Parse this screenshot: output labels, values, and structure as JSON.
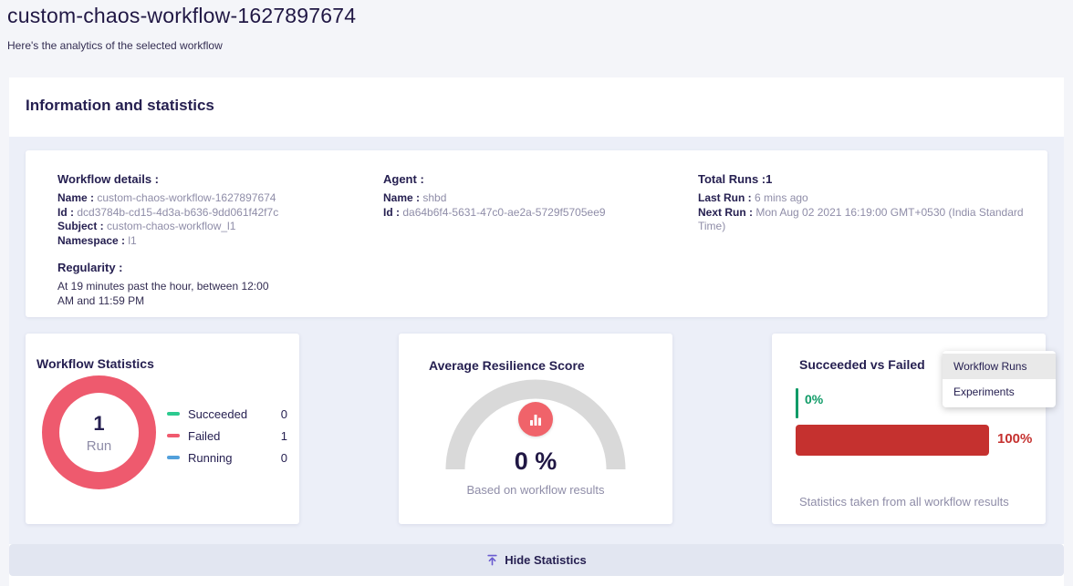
{
  "page": {
    "title": "custom-chaos-workflow-1627897674",
    "subtitle": "Here's the analytics of the selected workflow"
  },
  "section": {
    "title": "Information and statistics"
  },
  "workflow_details": {
    "heading": "Workflow details :",
    "name_label": "Name :",
    "name_value": "custom-chaos-workflow-1627897674",
    "id_label": "Id :",
    "id_value": "dcd3784b-cd15-4d3a-b636-9dd061f42f7c",
    "subject_label": "Subject :",
    "subject_value": "custom-chaos-workflow_l1",
    "namespace_label": "Namespace :",
    "namespace_value": "l1",
    "regularity_heading": "Regularity :",
    "regularity_line1": "At 19 minutes past the hour, between 12:00",
    "regularity_line2": "AM and 11:59 PM"
  },
  "agent": {
    "heading": "Agent :",
    "name_label": "Name :",
    "name_value": "shbd",
    "id_label": "Id :",
    "id_value": "da64b6f4-5631-47c0-ae2a-5729f5705ee9"
  },
  "runs": {
    "total_label": "Total Runs :1",
    "last_label": "Last Run :",
    "last_value": "6 mins ago",
    "next_label": "Next Run :",
    "next_value": "Mon Aug 02 2021 16:19:00 GMT+0530 (India Standard Time)"
  },
  "workflow_stats_card": {
    "title": "Workflow Statistics",
    "center_value": "1",
    "center_label": "Run",
    "legend": [
      {
        "label": "Succeeded",
        "value": "0",
        "color": "#2CCA8F"
      },
      {
        "label": "Failed",
        "value": "1",
        "color": "#F05A6E"
      },
      {
        "label": "Running",
        "value": "0",
        "color": "#52A0DB"
      }
    ]
  },
  "resilience_card": {
    "title": "Average Resilience Score",
    "score_label": "0 %",
    "caption": "Based on workflow results"
  },
  "svf_card": {
    "title": "Succeeded vs Failed",
    "succeeded_label": "0%",
    "failed_label": "100%",
    "caption": "Statistics taken from all workflow results"
  },
  "dropdown": {
    "items": [
      {
        "label": "Workflow Runs",
        "selected": true
      },
      {
        "label": "Experiments",
        "selected": false
      }
    ]
  },
  "footer": {
    "hide_label": "Hide Statistics"
  },
  "colors": {
    "accent_purple": "#6A5BD0",
    "donut_failed": "#EE5A6E",
    "succeeded_green": "#2CCA8F",
    "running_blue": "#52A0DB",
    "bar_green": "#109B67",
    "bar_red": "#C5312F",
    "gauge_gray": "#D9D9D9",
    "gauge_icon_bg": "#F0636A",
    "panel_bg": "#ECEFF8",
    "hide_bar_bg": "#E2E6F1"
  },
  "chart_data": [
    {
      "type": "pie",
      "title": "Workflow Statistics",
      "categories": [
        "Succeeded",
        "Failed",
        "Running"
      ],
      "values": [
        0,
        1,
        0
      ],
      "colors": [
        "#2CCA8F",
        "#EE5A6E",
        "#52A0DB"
      ],
      "center_label": "1 Run",
      "legend_position": "right"
    },
    {
      "type": "gauge",
      "title": "Average Resilience Score",
      "value_percent": 0,
      "label": "0 %",
      "caption": "Based on workflow results",
      "range": [
        0,
        100
      ],
      "arc_color": "#D9D9D9"
    },
    {
      "type": "bar",
      "title": "Succeeded vs Failed",
      "categories": [
        "Succeeded",
        "Failed"
      ],
      "values": [
        0,
        100
      ],
      "unit": "%",
      "colors": [
        "#109B67",
        "#C5312F"
      ],
      "caption": "Statistics taken from all workflow results",
      "xlim": [
        0,
        100
      ]
    }
  ]
}
